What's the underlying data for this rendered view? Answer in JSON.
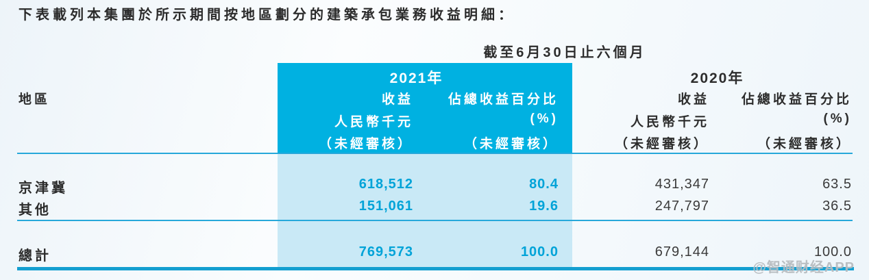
{
  "intro": "下表載列本集團於所示期間按地區劃分的建築承包業務收益明細：",
  "table": {
    "period_header": "截至6月30日止六個月",
    "region_label": "地區",
    "y2021": {
      "year": "2021年",
      "revenue_title": "收益",
      "pct_title": "佔總收益百分比",
      "revenue_unit": "人民幣千元",
      "pct_unit": "(%)",
      "unaudited_rev": "（未經審核）",
      "unaudited_pct": "（未經審核）"
    },
    "y2020": {
      "year": "2020年",
      "revenue_title": "收益",
      "pct_title": "佔總收益百分比",
      "revenue_unit": "人民幣千元",
      "pct_unit": "(%)",
      "unaudited_rev": "（未經審核）",
      "unaudited_pct": "（未經審核）"
    },
    "rows": [
      {
        "region": "京津冀",
        "rev2021": "618,512",
        "pct2021": "80.4",
        "rev2020": "431,347",
        "pct2020": "63.5"
      },
      {
        "region": "其他",
        "rev2021": "151,061",
        "pct2021": "19.6",
        "rev2020": "247,797",
        "pct2020": "36.5"
      }
    ],
    "total": {
      "region": "總計",
      "rev2021": "769,573",
      "pct2021": "100.0",
      "rev2020": "679,144",
      "pct2020": "100.0"
    }
  },
  "watermark": "@智通财经APP",
  "colors": {
    "highlight": "#00b1e1",
    "highlight_light": "#c9e9f6",
    "accent_number": "#00a3d8",
    "rule": "#27a8da",
    "rule_heavy": "#149fd0",
    "text": "#2d2d2d",
    "watermark": "#b2b6bb"
  }
}
